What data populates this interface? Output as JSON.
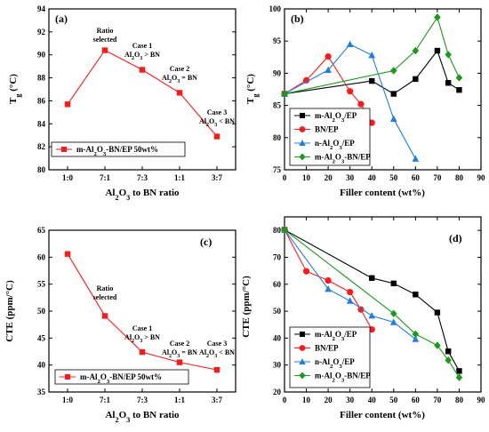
{
  "colors": {
    "black": "#000000",
    "red": "#ff1a1a",
    "blue": "#1f7fe0",
    "green": "#1a9a1a"
  },
  "chart_data": [
    {
      "id": "a",
      "type": "line",
      "panel_label": "(a)",
      "xlabel": "Al2O3 to BN ratio",
      "ylabel": "Tg (°C)",
      "categories": [
        "1:0",
        "7:1",
        "7:3",
        "1:1",
        "3:7"
      ],
      "ylim": [
        80,
        94
      ],
      "yticks": [
        80,
        82,
        84,
        86,
        88,
        90,
        92,
        94
      ],
      "series": [
        {
          "name": "m-Al2O3-BN/EP 50wt%",
          "color": "#ff1a1a",
          "marker": "square",
          "values": [
            85.7,
            90.4,
            88.7,
            86.7,
            82.9
          ]
        }
      ],
      "annotations": [
        {
          "lines": [
            "Ratio",
            "selected"
          ],
          "cat": 1,
          "y": 91.9
        },
        {
          "lines": [
            "Case 1",
            "Al2O3 > BN"
          ],
          "cat": 2,
          "y": 90.6
        },
        {
          "lines": [
            "Case 2",
            "Al2O3 = BN"
          ],
          "cat": 3,
          "y": 88.6
        },
        {
          "lines": [
            "Case 3",
            "Al2O3 < BN"
          ],
          "cat": 4,
          "y": 84.8
        }
      ],
      "legend": "bottom-left"
    },
    {
      "id": "b",
      "type": "line",
      "panel_label": "(b)",
      "xlabel": "Filler content (wt%)",
      "ylabel": "Tg (°C)",
      "xlim": [
        0,
        90
      ],
      "xticks": [
        0,
        10,
        20,
        30,
        40,
        50,
        60,
        70,
        80,
        90
      ],
      "ylim": [
        75,
        100
      ],
      "yticks": [
        75,
        80,
        85,
        90,
        95,
        100
      ],
      "series": [
        {
          "name": "m-Al2O3/EP",
          "color": "#000000",
          "marker": "square",
          "x": [
            0,
            40,
            50,
            60,
            70,
            75,
            80
          ],
          "y": [
            86.8,
            88.8,
            86.8,
            89.1,
            93.5,
            88.5,
            87.4
          ]
        },
        {
          "name": "BN/EP",
          "color": "#ff1a1a",
          "marker": "circle",
          "x": [
            0,
            10,
            20,
            30,
            35,
            40
          ],
          "y": [
            86.8,
            88.9,
            92.6,
            87.2,
            85.2,
            82.3
          ]
        },
        {
          "name": "n-Al2O3/EP",
          "color": "#1f7fe0",
          "marker": "triangle",
          "x": [
            0,
            20,
            30,
            40,
            50,
            60
          ],
          "y": [
            86.8,
            90.5,
            94.5,
            92.8,
            82.9,
            76.7
          ]
        },
        {
          "name": "m-Al2O3-BN/EP",
          "color": "#1a9a1a",
          "marker": "diamond",
          "x": [
            0,
            50,
            60,
            70,
            75,
            80
          ],
          "y": [
            86.8,
            90.4,
            93.5,
            98.7,
            92.9,
            89.3
          ]
        }
      ],
      "legend": "bottom-left"
    },
    {
      "id": "c",
      "type": "line",
      "panel_label": "(c)",
      "xlabel": "Al2O3 to BN ratio",
      "ylabel": "CTE (ppm/°C)",
      "categories": [
        "1:0",
        "7:1",
        "7:3",
        "1:1",
        "3:7"
      ],
      "ylim": [
        35,
        65
      ],
      "yticks": [
        35,
        40,
        45,
        50,
        55,
        60,
        65
      ],
      "series": [
        {
          "name": "m-Al2O3-BN/EP 50wt%",
          "color": "#ff1a1a",
          "marker": "square",
          "values": [
            60.6,
            49.1,
            42.4,
            40.5,
            39.1
          ]
        }
      ],
      "annotations": [
        {
          "lines": [
            "Ratio",
            "selected"
          ],
          "cat": 1,
          "y": 53.8
        },
        {
          "lines": [
            "Case 1",
            "Al2O3 > BN"
          ],
          "cat": 2,
          "y": 46.4
        },
        {
          "lines": [
            "Case 2",
            "Al2O3 = BN"
          ],
          "cat": 3,
          "y": 43.6
        },
        {
          "lines": [
            "Case 3",
            "Al2O3 < BN"
          ],
          "cat": 4,
          "y": 43.6
        }
      ],
      "legend": "bottom-left"
    },
    {
      "id": "d",
      "type": "line",
      "panel_label": "(d)",
      "xlabel": "Filler content (wt%)",
      "ylabel": "CTE (ppm/°C)",
      "xlim": [
        0,
        90
      ],
      "xticks": [
        0,
        10,
        20,
        30,
        40,
        50,
        60,
        70,
        80,
        90
      ],
      "ylim": [
        20,
        85
      ],
      "yticks": [
        20,
        30,
        40,
        50,
        60,
        70,
        80
      ],
      "series": [
        {
          "name": "m-Al2O3/EP",
          "color": "#000000",
          "marker": "square",
          "x": [
            0,
            40,
            50,
            60,
            70,
            75,
            80
          ],
          "y": [
            80.2,
            62.3,
            60.3,
            56.2,
            49.5,
            35.1,
            27.8
          ]
        },
        {
          "name": "BN/EP",
          "color": "#ff1a1a",
          "marker": "circle",
          "x": [
            0,
            10,
            20,
            30,
            35,
            40
          ],
          "y": [
            80.2,
            64.8,
            61.4,
            57.1,
            50.6,
            43.2
          ]
        },
        {
          "name": "n-Al2O3/EP",
          "color": "#1f7fe0",
          "marker": "triangle",
          "x": [
            0,
            20,
            30,
            40,
            50,
            60
          ],
          "y": [
            80.2,
            58.2,
            53.8,
            48.3,
            45.9,
            39.6
          ]
        },
        {
          "name": "m-Al2O3-BN/EP",
          "color": "#1a9a1a",
          "marker": "diamond",
          "x": [
            0,
            50,
            60,
            70,
            75,
            80
          ],
          "y": [
            80.2,
            49.1,
            41.5,
            37.3,
            31.8,
            25.4
          ]
        }
      ],
      "legend": "bottom-left"
    }
  ]
}
